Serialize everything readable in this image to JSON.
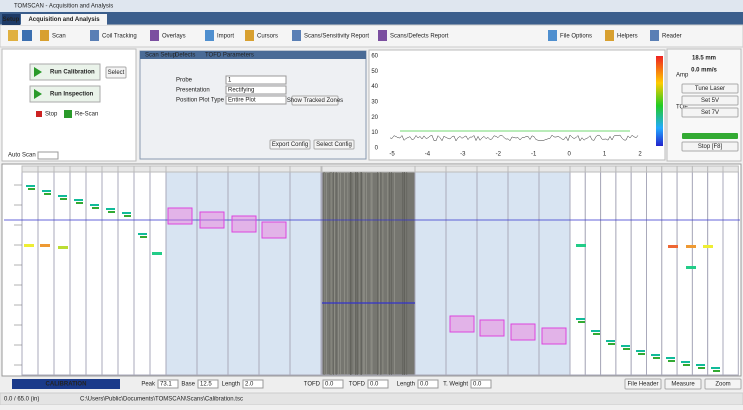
{
  "window": {
    "title": "TOMSCAN - Acquisition and Analysis"
  },
  "tabs": [
    "Setup",
    "Acquisition and Analysis"
  ],
  "toolbar": [
    "Scan",
    "Coil Tracking",
    "Overlays",
    "Import",
    "Cursors",
    "Scans/Sensitivity Report",
    "Scans/Defects Report",
    "File Options",
    "Helpers",
    "Reader"
  ],
  "controls": {
    "run_calibration": "Run Calibration",
    "select": "Select",
    "run_inspection": "Run Inspection",
    "stop": "Stop",
    "rescan": "Re-Scan",
    "auto_scan": "Auto Scan"
  },
  "dialog": {
    "tabs": [
      "Scan Setup",
      "Defects",
      "TOFD Parameters"
    ],
    "fields": [
      {
        "label": "Probe",
        "value": "1"
      },
      {
        "label": "Presentation",
        "value": "Rectifying"
      },
      {
        "label": "Position Plot Type",
        "value": "Entire Plot"
      }
    ],
    "buttons": [
      "Show Tracked Zones",
      "Export Config",
      "Select Config"
    ]
  },
  "graph": {
    "yticks": [
      "60",
      "50",
      "40",
      "30",
      "20",
      "10",
      "0"
    ],
    "xticks": [
      "-5",
      "-4",
      "-3",
      "-2",
      "-1",
      "0",
      "1",
      "2"
    ]
  },
  "right_panel": {
    "readouts": [
      "18.5 mm",
      "0.0 mm/s"
    ],
    "labels": [
      "Amp",
      "TOF"
    ],
    "buttons": [
      "Tune Laser",
      "Set 5V",
      "Set 7V",
      "Stop [F8]"
    ]
  },
  "bottom": {
    "mode": "CALIBRATION",
    "fields": [
      {
        "label": "Peak",
        "value": "73.1"
      },
      {
        "label": "Base",
        "value": "12.5"
      },
      {
        "label": "Length",
        "value": "2.0"
      },
      {
        "label": "TOFD",
        "value": "0.0"
      },
      {
        "label": "TOFD",
        "value": "0.0"
      },
      {
        "label": "Length",
        "value": "0.0"
      },
      {
        "label": "T. Weight",
        "value": "0.0"
      }
    ],
    "buttons": [
      "File Header",
      "Measure",
      "Zoom"
    ]
  },
  "status": {
    "left": "0.0 / 65.0 (in)",
    "path": "C:\\Users\\Public\\Documents\\TOMSCAN\\Scans\\Calibration.tsc"
  }
}
